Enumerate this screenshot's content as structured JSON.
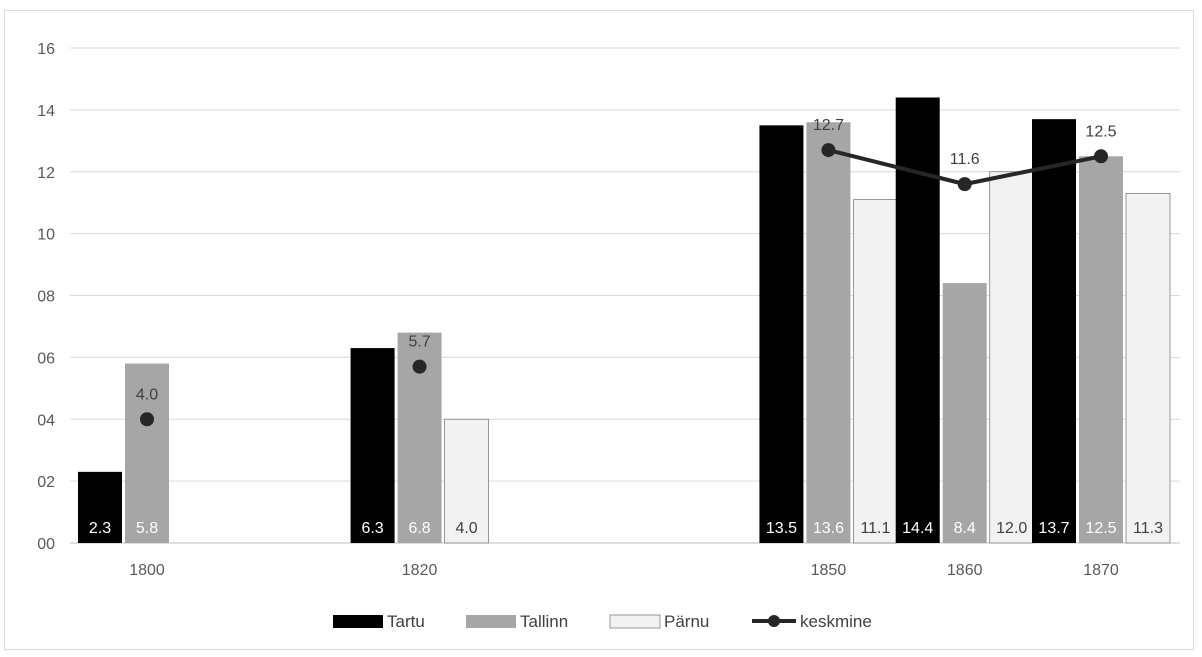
{
  "chart_data": {
    "type": "bar",
    "title": "",
    "xlabel": "",
    "ylabel": "",
    "ylim": [
      0,
      16
    ],
    "yticks": [
      "00",
      "02",
      "04",
      "06",
      "08",
      "10",
      "12",
      "14",
      "16"
    ],
    "grid": true,
    "legend_position": "bottom",
    "categories": [
      "1800",
      "1820",
      "1850",
      "1860",
      "1870"
    ],
    "x_values": [
      1800,
      1820,
      1850,
      1860,
      1870
    ],
    "series": [
      {
        "name": "Tartu",
        "color": "#000000",
        "values": [
          2.3,
          6.3,
          13.5,
          14.4,
          13.7
        ],
        "labels": [
          "2.3",
          "6.3",
          "13.5",
          "14.4",
          "13.7"
        ]
      },
      {
        "name": "Tallinn",
        "color": "#a6a6a6",
        "values": [
          5.8,
          6.8,
          13.6,
          8.4,
          12.5
        ],
        "labels": [
          "5.8",
          "6.8",
          "13.6",
          "8.4",
          "12.5"
        ]
      },
      {
        "name": "Pärnu",
        "color": "#f2f2f2",
        "values": [
          null,
          4.0,
          11.1,
          12.0,
          11.3
        ],
        "labels": [
          "",
          "4.0",
          "11.1",
          "12.0",
          "11.3"
        ]
      }
    ],
    "line_series": {
      "name": "keskmine",
      "color": "#262626",
      "values": [
        4.0,
        5.7,
        12.7,
        11.6,
        12.5
      ],
      "labels": [
        "4.0",
        "5.7",
        "12.7",
        "11.6",
        "12.5"
      ]
    }
  }
}
